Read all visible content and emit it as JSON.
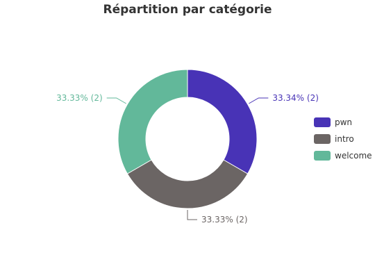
{
  "chart_data": {
    "type": "pie",
    "variant": "donut",
    "title": "Répartition par catégorie",
    "categories": [
      "pwn",
      "intro",
      "welcome"
    ],
    "values": [
      2,
      2,
      2
    ],
    "percent_labels": [
      "33.34% (2)",
      "33.33% (2)",
      "33.33% (2)"
    ],
    "colors": [
      "#4833b6",
      "#6b6564",
      "#62b89a"
    ],
    "legend_position": "right"
  }
}
